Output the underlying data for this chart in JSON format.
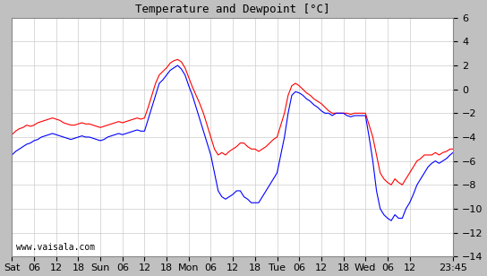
{
  "title": "Temperature and Dewpoint [°C]",
  "ylabel": "",
  "xlabel": "",
  "background_color": "#c0c0c0",
  "plot_bg_color": "#ffffff",
  "grid_color": "#cccccc",
  "temp_color": "#ff0000",
  "dewp_color": "#0000ff",
  "ylim": [
    -14,
    6
  ],
  "yticks": [
    -14,
    -12,
    -10,
    -8,
    -6,
    -4,
    -2,
    0,
    2,
    4,
    6
  ],
  "xtick_labels": [
    "Sat",
    "06",
    "12",
    "18",
    "Sun",
    "06",
    "12",
    "18",
    "Mon",
    "06",
    "12",
    "18",
    "Tue",
    "06",
    "12",
    "18",
    "Wed",
    "06",
    "12",
    "23:45"
  ],
  "xtick_positions": [
    0,
    6,
    12,
    18,
    24,
    30,
    36,
    42,
    48,
    54,
    60,
    66,
    72,
    78,
    84,
    90,
    96,
    102,
    108,
    119.75
  ],
  "watermark": "www.vaisala.com",
  "total_hours": 119.75,
  "temp_data": [
    [
      0,
      -3.8
    ],
    [
      1,
      -3.5
    ],
    [
      2,
      -3.3
    ],
    [
      3,
      -3.2
    ],
    [
      4,
      -3.0
    ],
    [
      5,
      -3.1
    ],
    [
      6,
      -3.0
    ],
    [
      7,
      -2.8
    ],
    [
      8,
      -2.7
    ],
    [
      9,
      -2.6
    ],
    [
      10,
      -2.5
    ],
    [
      11,
      -2.4
    ],
    [
      12,
      -2.5
    ],
    [
      13,
      -2.6
    ],
    [
      14,
      -2.8
    ],
    [
      15,
      -2.9
    ],
    [
      16,
      -3.0
    ],
    [
      17,
      -3.0
    ],
    [
      18,
      -2.9
    ],
    [
      19,
      -2.8
    ],
    [
      20,
      -2.9
    ],
    [
      21,
      -2.9
    ],
    [
      22,
      -3.0
    ],
    [
      23,
      -3.1
    ],
    [
      24,
      -3.2
    ],
    [
      25,
      -3.1
    ],
    [
      26,
      -3.0
    ],
    [
      27,
      -2.9
    ],
    [
      28,
      -2.8
    ],
    [
      29,
      -2.7
    ],
    [
      30,
      -2.8
    ],
    [
      31,
      -2.7
    ],
    [
      32,
      -2.6
    ],
    [
      33,
      -2.5
    ],
    [
      34,
      -2.4
    ],
    [
      35,
      -2.5
    ],
    [
      36,
      -2.4
    ],
    [
      37,
      -1.5
    ],
    [
      38,
      -0.5
    ],
    [
      39,
      0.5
    ],
    [
      40,
      1.2
    ],
    [
      41,
      1.5
    ],
    [
      42,
      1.8
    ],
    [
      43,
      2.2
    ],
    [
      44,
      2.4
    ],
    [
      45,
      2.5
    ],
    [
      46,
      2.3
    ],
    [
      47,
      1.8
    ],
    [
      48,
      1.0
    ],
    [
      49,
      0.2
    ],
    [
      50,
      -0.5
    ],
    [
      51,
      -1.2
    ],
    [
      52,
      -2.0
    ],
    [
      53,
      -3.0
    ],
    [
      54,
      -4.0
    ],
    [
      55,
      -5.0
    ],
    [
      56,
      -5.5
    ],
    [
      57,
      -5.3
    ],
    [
      58,
      -5.5
    ],
    [
      59,
      -5.2
    ],
    [
      60,
      -5.0
    ],
    [
      61,
      -4.8
    ],
    [
      62,
      -4.5
    ],
    [
      63,
      -4.5
    ],
    [
      64,
      -4.8
    ],
    [
      65,
      -5.0
    ],
    [
      66,
      -5.0
    ],
    [
      67,
      -5.2
    ],
    [
      68,
      -5.0
    ],
    [
      69,
      -4.8
    ],
    [
      70,
      -4.5
    ],
    [
      71,
      -4.2
    ],
    [
      72,
      -4.0
    ],
    [
      73,
      -3.0
    ],
    [
      74,
      -2.0
    ],
    [
      75,
      -0.5
    ],
    [
      76,
      0.3
    ],
    [
      77,
      0.5
    ],
    [
      78,
      0.3
    ],
    [
      79,
      0.0
    ],
    [
      80,
      -0.3
    ],
    [
      81,
      -0.5
    ],
    [
      82,
      -0.8
    ],
    [
      83,
      -1.0
    ],
    [
      84,
      -1.2
    ],
    [
      85,
      -1.5
    ],
    [
      86,
      -1.8
    ],
    [
      87,
      -2.0
    ],
    [
      88,
      -2.0
    ],
    [
      89,
      -2.0
    ],
    [
      90,
      -2.0
    ],
    [
      91,
      -2.0
    ],
    [
      92,
      -2.1
    ],
    [
      93,
      -2.0
    ],
    [
      94,
      -2.0
    ],
    [
      95,
      -2.0
    ],
    [
      96,
      -2.0
    ],
    [
      97,
      -3.0
    ],
    [
      98,
      -4.0
    ],
    [
      99,
      -5.5
    ],
    [
      100,
      -7.0
    ],
    [
      101,
      -7.5
    ],
    [
      102,
      -7.8
    ],
    [
      103,
      -8.0
    ],
    [
      104,
      -7.5
    ],
    [
      105,
      -7.8
    ],
    [
      106,
      -8.0
    ],
    [
      107,
      -7.5
    ],
    [
      108,
      -7.0
    ],
    [
      109,
      -6.5
    ],
    [
      110,
      -6.0
    ],
    [
      111,
      -5.8
    ],
    [
      112,
      -5.5
    ],
    [
      113,
      -5.5
    ],
    [
      114,
      -5.5
    ],
    [
      115,
      -5.3
    ],
    [
      116,
      -5.5
    ],
    [
      117,
      -5.3
    ],
    [
      118,
      -5.2
    ],
    [
      119,
      -5.0
    ],
    [
      119.75,
      -5.0
    ]
  ],
  "dewp_data": [
    [
      0,
      -5.5
    ],
    [
      1,
      -5.2
    ],
    [
      2,
      -5.0
    ],
    [
      3,
      -4.8
    ],
    [
      4,
      -4.6
    ],
    [
      5,
      -4.5
    ],
    [
      6,
      -4.3
    ],
    [
      7,
      -4.2
    ],
    [
      8,
      -4.0
    ],
    [
      9,
      -3.9
    ],
    [
      10,
      -3.8
    ],
    [
      11,
      -3.7
    ],
    [
      12,
      -3.8
    ],
    [
      13,
      -3.9
    ],
    [
      14,
      -4.0
    ],
    [
      15,
      -4.1
    ],
    [
      16,
      -4.2
    ],
    [
      17,
      -4.1
    ],
    [
      18,
      -4.0
    ],
    [
      19,
      -3.9
    ],
    [
      20,
      -4.0
    ],
    [
      21,
      -4.0
    ],
    [
      22,
      -4.1
    ],
    [
      23,
      -4.2
    ],
    [
      24,
      -4.3
    ],
    [
      25,
      -4.2
    ],
    [
      26,
      -4.0
    ],
    [
      27,
      -3.9
    ],
    [
      28,
      -3.8
    ],
    [
      29,
      -3.7
    ],
    [
      30,
      -3.8
    ],
    [
      31,
      -3.7
    ],
    [
      32,
      -3.6
    ],
    [
      33,
      -3.5
    ],
    [
      34,
      -3.4
    ],
    [
      35,
      -3.5
    ],
    [
      36,
      -3.5
    ],
    [
      37,
      -2.5
    ],
    [
      38,
      -1.5
    ],
    [
      39,
      -0.5
    ],
    [
      40,
      0.5
    ],
    [
      41,
      0.8
    ],
    [
      42,
      1.2
    ],
    [
      43,
      1.6
    ],
    [
      44,
      1.8
    ],
    [
      45,
      2.0
    ],
    [
      46,
      1.7
    ],
    [
      47,
      1.2
    ],
    [
      48,
      0.3
    ],
    [
      49,
      -0.5
    ],
    [
      50,
      -1.5
    ],
    [
      51,
      -2.5
    ],
    [
      52,
      -3.5
    ],
    [
      53,
      -4.5
    ],
    [
      54,
      -5.5
    ],
    [
      55,
      -7.0
    ],
    [
      56,
      -8.5
    ],
    [
      57,
      -9.0
    ],
    [
      58,
      -9.2
    ],
    [
      59,
      -9.0
    ],
    [
      60,
      -8.8
    ],
    [
      61,
      -8.5
    ],
    [
      62,
      -8.5
    ],
    [
      63,
      -9.0
    ],
    [
      64,
      -9.2
    ],
    [
      65,
      -9.5
    ],
    [
      66,
      -9.5
    ],
    [
      67,
      -9.5
    ],
    [
      68,
      -9.0
    ],
    [
      69,
      -8.5
    ],
    [
      70,
      -8.0
    ],
    [
      71,
      -7.5
    ],
    [
      72,
      -7.0
    ],
    [
      73,
      -5.5
    ],
    [
      74,
      -4.0
    ],
    [
      75,
      -2.0
    ],
    [
      76,
      -0.5
    ],
    [
      77,
      -0.2
    ],
    [
      78,
      -0.3
    ],
    [
      79,
      -0.5
    ],
    [
      80,
      -0.8
    ],
    [
      81,
      -1.0
    ],
    [
      82,
      -1.3
    ],
    [
      83,
      -1.5
    ],
    [
      84,
      -1.8
    ],
    [
      85,
      -2.0
    ],
    [
      86,
      -2.0
    ],
    [
      87,
      -2.2
    ],
    [
      88,
      -2.0
    ],
    [
      89,
      -2.0
    ],
    [
      90,
      -2.0
    ],
    [
      91,
      -2.2
    ],
    [
      92,
      -2.3
    ],
    [
      93,
      -2.2
    ],
    [
      94,
      -2.2
    ],
    [
      95,
      -2.2
    ],
    [
      96,
      -2.2
    ],
    [
      97,
      -4.0
    ],
    [
      98,
      -6.0
    ],
    [
      99,
      -8.5
    ],
    [
      100,
      -10.0
    ],
    [
      101,
      -10.5
    ],
    [
      102,
      -10.8
    ],
    [
      103,
      -11.0
    ],
    [
      104,
      -10.5
    ],
    [
      105,
      -10.8
    ],
    [
      106,
      -10.8
    ],
    [
      107,
      -10.0
    ],
    [
      108,
      -9.5
    ],
    [
      109,
      -8.8
    ],
    [
      110,
      -8.0
    ],
    [
      111,
      -7.5
    ],
    [
      112,
      -7.0
    ],
    [
      113,
      -6.5
    ],
    [
      114,
      -6.2
    ],
    [
      115,
      -6.0
    ],
    [
      116,
      -6.2
    ],
    [
      117,
      -6.0
    ],
    [
      118,
      -5.8
    ],
    [
      119,
      -5.5
    ],
    [
      119.75,
      -5.3
    ]
  ]
}
